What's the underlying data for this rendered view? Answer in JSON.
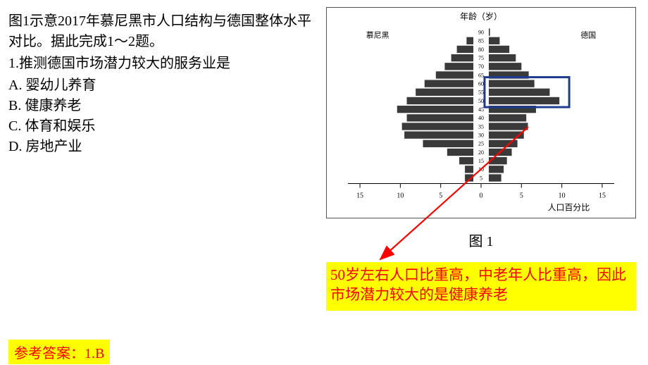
{
  "question": {
    "intro": "图1示意2017年慕尼黑市人口结构与德国整体水平对比。据此完成1～2题。",
    "prompt": "1.推测德国市场潜力较大的服务业是",
    "choices": {
      "A": "A.  婴幼儿养育",
      "B": "B.  健康养老",
      "C": "C.  体育和娱乐",
      "D": "D.  房地产业"
    }
  },
  "figure": {
    "type": "population-pyramid",
    "caption": "图 1",
    "title": "年龄（岁）",
    "left_label": "慕尼黑",
    "right_label": "德国",
    "x_label": "人口百分比",
    "age_labels": [
      "5",
      "10",
      "15",
      "20",
      "25",
      "30",
      "35",
      "40",
      "45",
      "50",
      "55",
      "60",
      "65",
      "70",
      "75",
      "80",
      "85",
      "90"
    ],
    "left_series": [
      2.0,
      2.0,
      2.7,
      4.2,
      7.2,
      9.5,
      9.8,
      9.2,
      10.4,
      9.2,
      8.1,
      7.0,
      5.6,
      4.5,
      3.7,
      3.0,
      1.8,
      0.9
    ],
    "right_series": [
      2.5,
      2.8,
      3.2,
      3.8,
      4.5,
      5.3,
      5.8,
      5.6,
      6.8,
      9.7,
      8.5,
      6.6,
      5.9,
      5.0,
      4.3,
      3.5,
      2.3,
      1.1
    ],
    "x_ticks": [
      -15,
      -10,
      -5,
      0,
      5,
      10,
      15
    ],
    "x_tick_labels": [
      "15",
      "10",
      "5",
      "0",
      "5",
      "10",
      "15"
    ],
    "xlim": [
      -16.5,
      16.5
    ],
    "colors": {
      "bar": "#3a3a3a",
      "bar_gap": "#ffffff",
      "axis": "#000000",
      "text": "#000000",
      "background": "#ffffff",
      "highlight_box": "#1f3b8f"
    },
    "highlight": {
      "rows_from": 9,
      "rows_to": 11,
      "side": "right"
    },
    "font": {
      "title_size_pt": 12,
      "axis_label_size_pt": 12,
      "tick_size_pt": 10,
      "age_label_size_pt": 8,
      "side_label_size_pt": 11
    }
  },
  "annotation": {
    "text": "50岁左右人口比重高，中老年人比重高，因此市场潜力较大的是健康养老",
    "text_color": "#ff0000",
    "bg_color": "#ffff00",
    "arrow_color": "#ff0000"
  },
  "answer": {
    "text": "参考答案：1.B",
    "text_color": "#ff0000",
    "bg_color": "#ffff00"
  }
}
